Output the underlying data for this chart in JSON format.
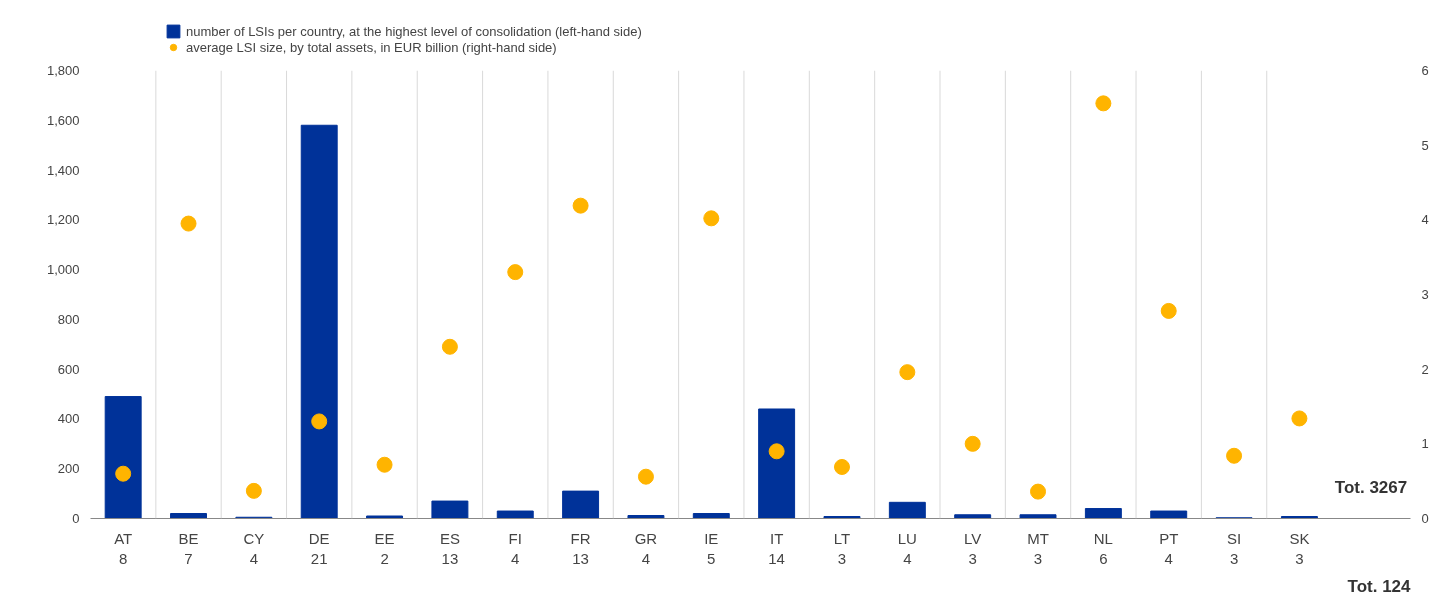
{
  "chart_data": {
    "type": "bar",
    "categories": [
      "AT\n8",
      "BE\n7",
      "CY\n4",
      "DE\n21",
      "EE\n2",
      "ES\n13",
      "FI\n4",
      "FR\n13",
      "GR\n4",
      "IE\n5",
      "IT\n14",
      "LT\n3",
      "LU\n4",
      "LV\n3",
      "MT\n3",
      "NL\n6",
      "PT\n4",
      "SI\n3",
      "SK\n3"
    ],
    "series": [
      {
        "name": "number of LSIs per country, at the highest level of consolidation (left-hand side)",
        "color": "#003299",
        "values": [
          490,
          20,
          5,
          1580,
          10,
          70,
          30,
          110,
          12,
          20,
          440,
          8,
          65,
          15,
          15,
          40,
          30,
          3,
          8
        ]
      },
      {
        "name": "average LSI size, by total assets, in EUR billion (right-hand side)",
        "type": "scatter",
        "axis": "y2",
        "color": "#ffb400",
        "values": [
          0.6,
          3.95,
          0.37,
          1.3,
          0.72,
          2.3,
          3.3,
          4.19,
          0.56,
          4.02,
          0.9,
          0.69,
          1.96,
          1.0,
          0.36,
          5.56,
          2.78,
          0.84,
          1.34
        ]
      }
    ],
    "ylim": [
      0,
      1800
    ],
    "yticks": [
      0,
      200,
      400,
      600,
      800,
      {
        "value": 1000,
        "label": "1,000"
      },
      {
        "value": 1200,
        "label": "1,200"
      },
      {
        "value": 1400,
        "label": "1,400"
      },
      {
        "value": 1600,
        "label": "1,600"
      },
      {
        "value": 1800,
        "label": "1,800"
      }
    ],
    "y2lim": [
      0,
      6
    ],
    "y2ticks": [
      0,
      1,
      2,
      3,
      4,
      5,
      6
    ],
    "annotations": [
      "Tot. 3267",
      "Tot. 124"
    ],
    "marker": "circle",
    "grid": "x",
    "legend": "top left"
  }
}
